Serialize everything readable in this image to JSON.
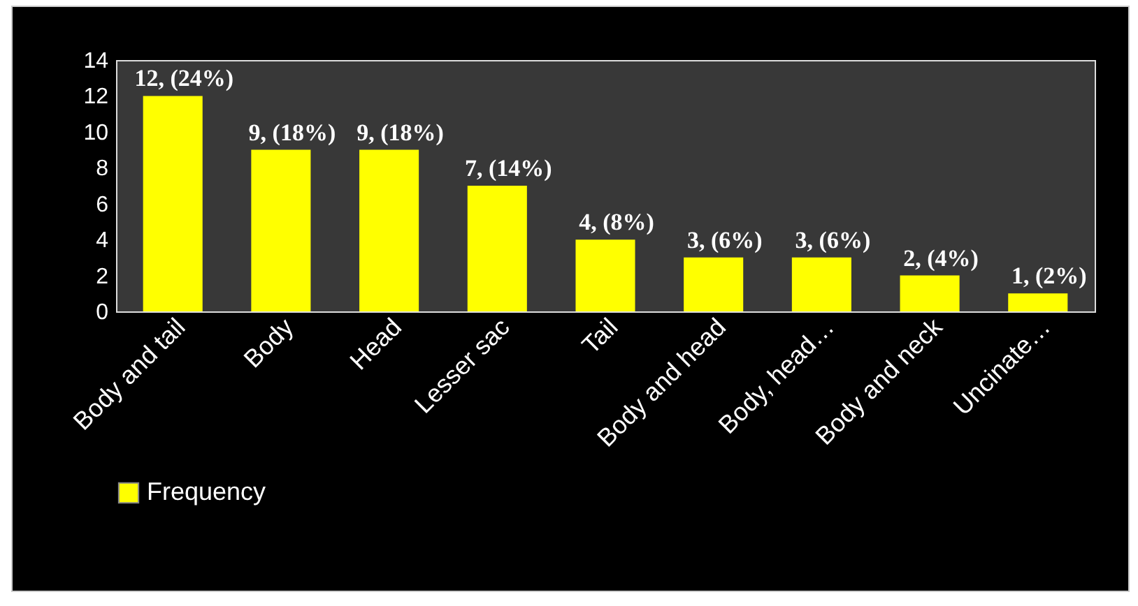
{
  "chart_data": {
    "type": "bar",
    "categories": [
      "Body and tail",
      "Body",
      "Head",
      "Lesser sac",
      "Tail",
      "Body and head",
      "Body, head…",
      "Body and neck",
      "Uncinate…"
    ],
    "series": [
      {
        "name": "Frequency",
        "color": "#ffff00",
        "values": [
          12,
          9,
          9,
          7,
          4,
          3,
          3,
          2,
          1
        ],
        "value_labels": [
          "12, (24%)",
          "9, (18%)",
          "9, (18%)",
          "7, (14%)",
          "4, (8%)",
          "3, (6%)",
          "3, (6%)",
          "2, (4%)",
          "1, (2%)"
        ]
      }
    ],
    "ylim": [
      0,
      14
    ],
    "yticks": [
      0,
      2,
      4,
      6,
      8,
      10,
      12,
      14
    ],
    "grid": false,
    "legend": "bottom"
  }
}
